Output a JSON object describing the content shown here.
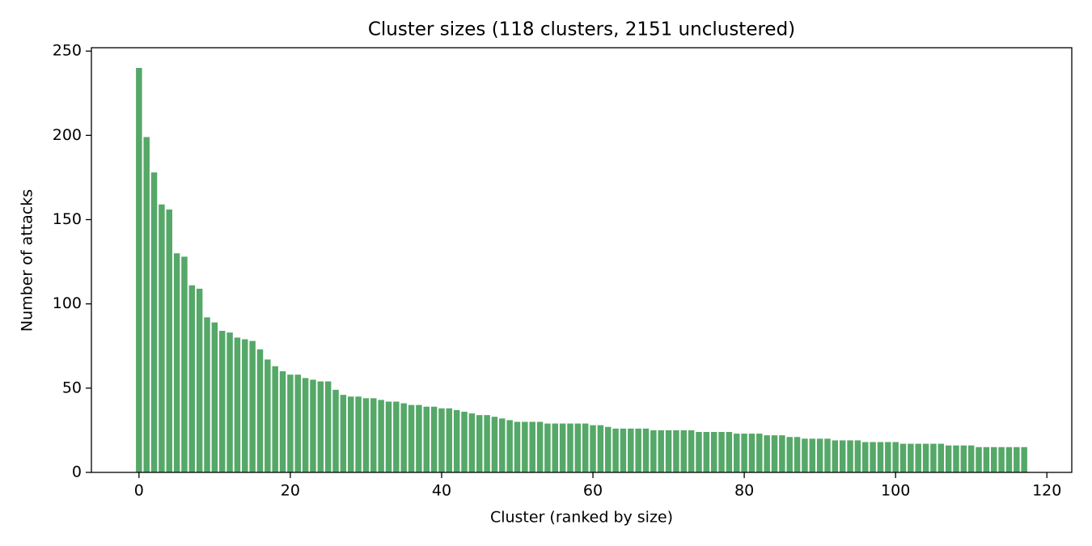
{
  "chart_data": {
    "type": "bar",
    "title": "Cluster sizes (118 clusters, 2151 unclustered)",
    "x_label": "Cluster (ranked by size)",
    "y_label": "Number of attacks",
    "x": [
      0,
      1,
      2,
      3,
      4,
      5,
      6,
      7,
      8,
      9,
      10,
      11,
      12,
      13,
      14,
      15,
      16,
      17,
      18,
      19,
      20,
      21,
      22,
      23,
      24,
      25,
      26,
      27,
      28,
      29,
      30,
      31,
      32,
      33,
      34,
      35,
      36,
      37,
      38,
      39,
      40,
      41,
      42,
      43,
      44,
      45,
      46,
      47,
      48,
      49,
      50,
      51,
      52,
      53,
      54,
      55,
      56,
      57,
      58,
      59,
      60,
      61,
      62,
      63,
      64,
      65,
      66,
      67,
      68,
      69,
      70,
      71,
      72,
      73,
      74,
      75,
      76,
      77,
      78,
      79,
      80,
      81,
      82,
      83,
      84,
      85,
      86,
      87,
      88,
      89,
      90,
      91,
      92,
      93,
      94,
      95,
      96,
      97,
      98,
      99,
      100,
      101,
      102,
      103,
      104,
      105,
      106,
      107,
      108,
      109,
      110,
      111,
      112,
      113,
      114,
      115,
      116,
      117
    ],
    "values": [
      240,
      199,
      178,
      159,
      156,
      130,
      128,
      111,
      109,
      92,
      89,
      84,
      83,
      80,
      79,
      78,
      73,
      67,
      63,
      60,
      58,
      58,
      56,
      55,
      54,
      54,
      49,
      46,
      45,
      45,
      44,
      44,
      43,
      42,
      42,
      41,
      40,
      40,
      39,
      39,
      38,
      38,
      37,
      36,
      35,
      34,
      34,
      33,
      32,
      31,
      30,
      30,
      30,
      30,
      29,
      29,
      29,
      29,
      29,
      29,
      28,
      28,
      27,
      26,
      26,
      26,
      26,
      26,
      25,
      25,
      25,
      25,
      25,
      25,
      24,
      24,
      24,
      24,
      24,
      23,
      23,
      23,
      23,
      22,
      22,
      22,
      21,
      21,
      20,
      20,
      20,
      20,
      19,
      19,
      19,
      19,
      18,
      18,
      18,
      18,
      18,
      17,
      17,
      17,
      17,
      17,
      17,
      16,
      16,
      16,
      16,
      15,
      15,
      15,
      15,
      15,
      15,
      15
    ],
    "color": "#55a868",
    "xlim": [
      -6.29,
      123.29
    ],
    "ylim": [
      0,
      252
    ],
    "xticks": [
      0,
      20,
      40,
      60,
      80,
      100,
      120
    ],
    "yticks": [
      0,
      50,
      100,
      150,
      200,
      250
    ]
  }
}
